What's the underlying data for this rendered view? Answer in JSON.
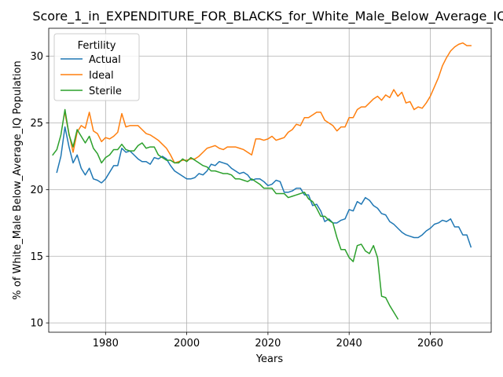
{
  "chart_data": {
    "type": "line",
    "title": "Score_1_in_EXPENDITURE_FOR_BLACKS_for_White_Male_Below_Average_IQ",
    "xlabel": "Years",
    "ylabel": "% of White_Male Below_Average_IQ Population",
    "xlim": [
      1966,
      2075
    ],
    "ylim": [
      9.3,
      32.1
    ],
    "xticks": [
      1980,
      2000,
      2020,
      2040,
      2060
    ],
    "yticks": [
      10,
      15,
      20,
      25,
      30
    ],
    "grid": true,
    "legend": {
      "title": "Fertility",
      "placement": "top-left"
    },
    "series": [
      {
        "name": "Actual",
        "color": "#1f77b4",
        "points": [
          [
            1968,
            21.3
          ],
          [
            1969,
            22.5
          ],
          [
            1970,
            24.7
          ],
          [
            1971,
            23.2
          ],
          [
            1972,
            22.0
          ],
          [
            1973,
            22.6
          ],
          [
            1974,
            21.6
          ],
          [
            1975,
            21.1
          ],
          [
            1976,
            21.6
          ],
          [
            1977,
            20.8
          ],
          [
            1978,
            20.7
          ],
          [
            1979,
            20.5
          ],
          [
            1980,
            20.8
          ],
          [
            1981,
            21.3
          ],
          [
            1982,
            21.8
          ],
          [
            1983,
            21.8
          ],
          [
            1984,
            23.1
          ],
          [
            1985,
            22.8
          ],
          [
            1986,
            22.9
          ],
          [
            1987,
            22.6
          ],
          [
            1988,
            22.3
          ],
          [
            1989,
            22.1
          ],
          [
            1990,
            22.1
          ],
          [
            1991,
            21.9
          ],
          [
            1992,
            22.4
          ],
          [
            1993,
            22.3
          ],
          [
            1994,
            22.5
          ],
          [
            1995,
            22.3
          ],
          [
            1996,
            21.8
          ],
          [
            1997,
            21.4
          ],
          [
            1998,
            21.2
          ],
          [
            1999,
            21.0
          ],
          [
            2000,
            20.8
          ],
          [
            2001,
            20.8
          ],
          [
            2002,
            20.9
          ],
          [
            2003,
            21.2
          ],
          [
            2004,
            21.1
          ],
          [
            2005,
            21.4
          ],
          [
            2006,
            21.9
          ],
          [
            2007,
            21.8
          ],
          [
            2008,
            22.1
          ],
          [
            2009,
            22.0
          ],
          [
            2010,
            21.9
          ],
          [
            2011,
            21.6
          ],
          [
            2012,
            21.4
          ],
          [
            2013,
            21.2
          ],
          [
            2014,
            21.3
          ],
          [
            2015,
            21.1
          ],
          [
            2016,
            20.7
          ],
          [
            2017,
            20.8
          ],
          [
            2018,
            20.8
          ],
          [
            2019,
            20.6
          ],
          [
            2020,
            20.3
          ],
          [
            2021,
            20.4
          ],
          [
            2022,
            20.7
          ],
          [
            2023,
            20.6
          ],
          [
            2024,
            19.8
          ],
          [
            2025,
            19.8
          ],
          [
            2026,
            19.9
          ],
          [
            2027,
            20.1
          ],
          [
            2028,
            20.1
          ],
          [
            2029,
            19.6
          ],
          [
            2030,
            19.6
          ],
          [
            2031,
            18.8
          ],
          [
            2032,
            18.9
          ],
          [
            2033,
            18.4
          ],
          [
            2034,
            17.6
          ],
          [
            2035,
            17.8
          ],
          [
            2036,
            17.5
          ],
          [
            2037,
            17.5
          ],
          [
            2038,
            17.7
          ],
          [
            2039,
            17.8
          ],
          [
            2040,
            18.5
          ],
          [
            2041,
            18.4
          ],
          [
            2042,
            19.1
          ],
          [
            2043,
            18.9
          ],
          [
            2044,
            19.4
          ],
          [
            2045,
            19.2
          ],
          [
            2046,
            18.8
          ],
          [
            2047,
            18.6
          ],
          [
            2048,
            18.2
          ],
          [
            2049,
            18.1
          ],
          [
            2050,
            17.6
          ],
          [
            2051,
            17.4
          ],
          [
            2052,
            17.1
          ],
          [
            2053,
            16.8
          ],
          [
            2054,
            16.6
          ],
          [
            2055,
            16.5
          ],
          [
            2056,
            16.4
          ],
          [
            2057,
            16.4
          ],
          [
            2058,
            16.6
          ],
          [
            2059,
            16.9
          ],
          [
            2060,
            17.1
          ],
          [
            2061,
            17.4
          ],
          [
            2062,
            17.5
          ],
          [
            2063,
            17.7
          ],
          [
            2064,
            17.6
          ],
          [
            2065,
            17.8
          ],
          [
            2066,
            17.2
          ],
          [
            2067,
            17.2
          ],
          [
            2068,
            16.6
          ],
          [
            2069,
            16.6
          ],
          [
            2070,
            15.7
          ]
        ]
      },
      {
        "name": "Ideal",
        "color": "#ff7f0e",
        "points": [
          [
            1970,
            25.7
          ],
          [
            1971,
            24.2
          ],
          [
            1972,
            22.8
          ],
          [
            1973,
            24.3
          ],
          [
            1974,
            24.8
          ],
          [
            1975,
            24.6
          ],
          [
            1976,
            25.8
          ],
          [
            1977,
            24.4
          ],
          [
            1978,
            24.2
          ],
          [
            1979,
            23.6
          ],
          [
            1980,
            23.9
          ],
          [
            1981,
            23.8
          ],
          [
            1982,
            24.0
          ],
          [
            1983,
            24.3
          ],
          [
            1984,
            25.7
          ],
          [
            1985,
            24.7
          ],
          [
            1986,
            24.8
          ],
          [
            1987,
            24.8
          ],
          [
            1988,
            24.8
          ],
          [
            1989,
            24.5
          ],
          [
            1990,
            24.2
          ],
          [
            1991,
            24.1
          ],
          [
            1992,
            23.9
          ],
          [
            1993,
            23.7
          ],
          [
            1994,
            23.4
          ],
          [
            1995,
            23.1
          ],
          [
            1996,
            22.6
          ],
          [
            1997,
            22.0
          ],
          [
            1998,
            22.1
          ],
          [
            1999,
            22.2
          ],
          [
            2000,
            22.2
          ],
          [
            2001,
            22.3
          ],
          [
            2002,
            22.3
          ],
          [
            2003,
            22.5
          ],
          [
            2004,
            22.8
          ],
          [
            2005,
            23.1
          ],
          [
            2006,
            23.2
          ],
          [
            2007,
            23.3
          ],
          [
            2008,
            23.1
          ],
          [
            2009,
            23.0
          ],
          [
            2010,
            23.2
          ],
          [
            2011,
            23.2
          ],
          [
            2012,
            23.2
          ],
          [
            2013,
            23.1
          ],
          [
            2014,
            23.0
          ],
          [
            2015,
            22.8
          ],
          [
            2016,
            22.6
          ],
          [
            2017,
            23.8
          ],
          [
            2018,
            23.8
          ],
          [
            2019,
            23.7
          ],
          [
            2020,
            23.8
          ],
          [
            2021,
            24.0
          ],
          [
            2022,
            23.7
          ],
          [
            2023,
            23.8
          ],
          [
            2024,
            23.9
          ],
          [
            2025,
            24.3
          ],
          [
            2026,
            24.5
          ],
          [
            2027,
            24.9
          ],
          [
            2028,
            24.8
          ],
          [
            2029,
            25.4
          ],
          [
            2030,
            25.4
          ],
          [
            2031,
            25.6
          ],
          [
            2032,
            25.8
          ],
          [
            2033,
            25.8
          ],
          [
            2034,
            25.2
          ],
          [
            2035,
            25.0
          ],
          [
            2036,
            24.8
          ],
          [
            2037,
            24.4
          ],
          [
            2038,
            24.7
          ],
          [
            2039,
            24.7
          ],
          [
            2040,
            25.4
          ],
          [
            2041,
            25.4
          ],
          [
            2042,
            26.0
          ],
          [
            2043,
            26.2
          ],
          [
            2044,
            26.2
          ],
          [
            2045,
            26.5
          ],
          [
            2046,
            26.8
          ],
          [
            2047,
            27.0
          ],
          [
            2048,
            26.7
          ],
          [
            2049,
            27.1
          ],
          [
            2050,
            26.9
          ],
          [
            2051,
            27.5
          ],
          [
            2052,
            27.0
          ],
          [
            2053,
            27.3
          ],
          [
            2054,
            26.5
          ],
          [
            2055,
            26.6
          ],
          [
            2056,
            26.0
          ],
          [
            2057,
            26.2
          ],
          [
            2058,
            26.1
          ],
          [
            2059,
            26.5
          ],
          [
            2060,
            27.0
          ],
          [
            2061,
            27.7
          ],
          [
            2062,
            28.4
          ],
          [
            2063,
            29.3
          ],
          [
            2064,
            29.9
          ],
          [
            2065,
            30.4
          ],
          [
            2066,
            30.7
          ],
          [
            2067,
            30.9
          ],
          [
            2068,
            31.0
          ],
          [
            2069,
            30.8
          ],
          [
            2070,
            30.8
          ]
        ]
      },
      {
        "name": "Sterile",
        "color": "#2ca02c",
        "points": [
          [
            1967,
            22.6
          ],
          [
            1968,
            23.0
          ],
          [
            1969,
            24.1
          ],
          [
            1970,
            26.0
          ],
          [
            1971,
            24.1
          ],
          [
            1972,
            23.2
          ],
          [
            1973,
            24.5
          ],
          [
            1974,
            24.0
          ],
          [
            1975,
            23.5
          ],
          [
            1976,
            24.0
          ],
          [
            1977,
            23.1
          ],
          [
            1978,
            22.7
          ],
          [
            1979,
            22.0
          ],
          [
            1980,
            22.4
          ],
          [
            1981,
            22.6
          ],
          [
            1982,
            23.0
          ],
          [
            1983,
            23.0
          ],
          [
            1984,
            23.4
          ],
          [
            1985,
            23.0
          ],
          [
            1986,
            22.9
          ],
          [
            1987,
            22.9
          ],
          [
            1988,
            23.3
          ],
          [
            1989,
            23.5
          ],
          [
            1990,
            23.1
          ],
          [
            1991,
            23.2
          ],
          [
            1992,
            23.2
          ],
          [
            1993,
            22.6
          ],
          [
            1994,
            22.4
          ],
          [
            1995,
            22.2
          ],
          [
            1996,
            22.2
          ],
          [
            1997,
            22.0
          ],
          [
            1998,
            22.0
          ],
          [
            1999,
            22.3
          ],
          [
            2000,
            22.1
          ],
          [
            2001,
            22.4
          ],
          [
            2002,
            22.2
          ],
          [
            2003,
            22.0
          ],
          [
            2004,
            21.8
          ],
          [
            2005,
            21.7
          ],
          [
            2006,
            21.4
          ],
          [
            2007,
            21.4
          ],
          [
            2008,
            21.3
          ],
          [
            2009,
            21.2
          ],
          [
            2010,
            21.2
          ],
          [
            2011,
            21.1
          ],
          [
            2012,
            20.8
          ],
          [
            2013,
            20.8
          ],
          [
            2014,
            20.7
          ],
          [
            2015,
            20.6
          ],
          [
            2016,
            20.8
          ],
          [
            2017,
            20.6
          ],
          [
            2018,
            20.4
          ],
          [
            2019,
            20.1
          ],
          [
            2020,
            20.1
          ],
          [
            2021,
            20.1
          ],
          [
            2022,
            19.7
          ],
          [
            2023,
            19.7
          ],
          [
            2024,
            19.7
          ],
          [
            2025,
            19.4
          ],
          [
            2026,
            19.5
          ],
          [
            2027,
            19.6
          ],
          [
            2028,
            19.7
          ],
          [
            2029,
            19.8
          ],
          [
            2030,
            19.3
          ],
          [
            2031,
            19.1
          ],
          [
            2032,
            18.6
          ],
          [
            2033,
            18.0
          ],
          [
            2034,
            18.0
          ],
          [
            2035,
            17.7
          ],
          [
            2036,
            17.5
          ],
          [
            2037,
            16.4
          ],
          [
            2038,
            15.5
          ],
          [
            2039,
            15.5
          ],
          [
            2040,
            14.9
          ],
          [
            2041,
            14.6
          ],
          [
            2042,
            15.8
          ],
          [
            2043,
            15.9
          ],
          [
            2044,
            15.4
          ],
          [
            2045,
            15.2
          ],
          [
            2046,
            15.8
          ],
          [
            2047,
            14.9
          ],
          [
            2048,
            12.0
          ],
          [
            2049,
            11.9
          ],
          [
            2050,
            11.3
          ],
          [
            2051,
            10.8
          ],
          [
            2052,
            10.3
          ]
        ]
      }
    ]
  }
}
